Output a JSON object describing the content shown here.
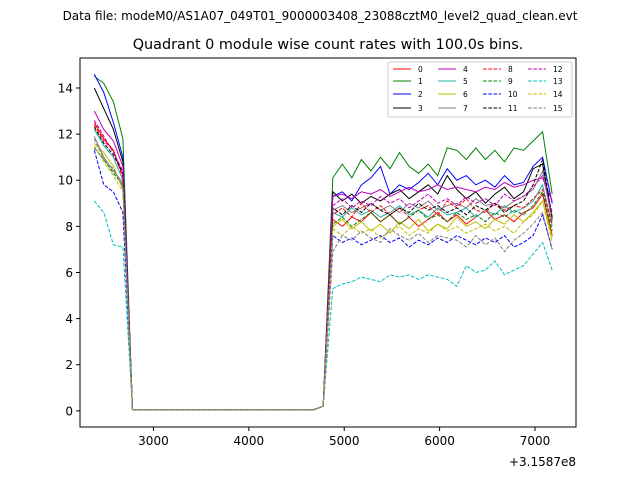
{
  "chart_data": {
    "type": "line",
    "suptitle": "Data file: modeM0/AS1A07_049T01_9000003408_23088cztM0_level2_quad_clean.evt",
    "title": "Quadrant 0 module wise count rates with 100.0s bins.",
    "xlabel": "",
    "ylabel": "",
    "x_offset_label": "+3.1587e8",
    "xlim": [
      2230,
      7430
    ],
    "ylim": [
      -0.7,
      15.3
    ],
    "x_ticks": [
      3000,
      4000,
      5000,
      6000,
      7000
    ],
    "y_ticks": [
      0,
      2,
      4,
      6,
      8,
      10,
      12,
      14
    ],
    "x_tick_labels": [
      "3000",
      "4000",
      "5000",
      "6000",
      "7000"
    ],
    "y_tick_labels": [
      "0",
      "2",
      "4",
      "6",
      "8",
      "10",
      "12",
      "14"
    ],
    "grid": false,
    "legend_position": "top-right",
    "x": [
      2380,
      2480,
      2580,
      2680,
      2780,
      2880,
      2980,
      3080,
      3180,
      3280,
      3380,
      3480,
      3580,
      3680,
      3780,
      3880,
      3980,
      4080,
      4180,
      4280,
      4380,
      4480,
      4580,
      4680,
      4780,
      4880,
      4980,
      5080,
      5180,
      5280,
      5380,
      5480,
      5580,
      5680,
      5780,
      5880,
      5980,
      6080,
      6180,
      6280,
      6380,
      6480,
      6580,
      6680,
      6780,
      6880,
      6980,
      7080,
      7180
    ],
    "series": [
      {
        "name": "0",
        "color": "#ff0000",
        "dash": false,
        "values": [
          12.5,
          11.8,
          11.3,
          10.2,
          0.05,
          0.05,
          0.05,
          0.05,
          0.05,
          0.05,
          0.05,
          0.05,
          0.05,
          0.05,
          0.05,
          0.05,
          0.05,
          0.05,
          0.05,
          0.05,
          0.05,
          0.05,
          0.05,
          0.05,
          0.2,
          8.3,
          8.0,
          8.4,
          8.2,
          8.6,
          8.2,
          8.5,
          8.1,
          8.4,
          8.0,
          8.3,
          8.6,
          8.2,
          8.5,
          8.1,
          8.4,
          8.7,
          8.3,
          8.5,
          8.2,
          8.6,
          8.8,
          9.4,
          7.6
        ]
      },
      {
        "name": "1",
        "color": "#008000",
        "dash": false,
        "values": [
          14.5,
          14.2,
          13.4,
          11.8,
          0.05,
          0.05,
          0.05,
          0.05,
          0.05,
          0.05,
          0.05,
          0.05,
          0.05,
          0.05,
          0.05,
          0.05,
          0.05,
          0.05,
          0.05,
          0.05,
          0.05,
          0.05,
          0.05,
          0.05,
          0.2,
          10.1,
          10.7,
          10.1,
          10.9,
          10.4,
          11.0,
          10.5,
          11.2,
          10.6,
          10.3,
          10.7,
          10.2,
          11.4,
          11.3,
          10.9,
          11.4,
          10.9,
          11.3,
          10.8,
          11.4,
          11.3,
          11.7,
          12.1,
          9.4
        ]
      },
      {
        "name": "2",
        "color": "#0000ff",
        "dash": false,
        "values": [
          14.6,
          13.8,
          12.5,
          11.0,
          0.05,
          0.05,
          0.05,
          0.05,
          0.05,
          0.05,
          0.05,
          0.05,
          0.05,
          0.05,
          0.05,
          0.05,
          0.05,
          0.05,
          0.05,
          0.05,
          0.05,
          0.05,
          0.05,
          0.05,
          0.2,
          9.3,
          9.5,
          9.1,
          9.8,
          10.1,
          10.6,
          9.4,
          9.8,
          9.6,
          9.9,
          10.3,
          9.8,
          10.5,
          10.0,
          10.2,
          9.8,
          10.0,
          9.7,
          10.2,
          9.8,
          9.9,
          10.6,
          11.0,
          9.0
        ]
      },
      {
        "name": "3",
        "color": "#000000",
        "dash": false,
        "values": [
          14.0,
          13.1,
          12.2,
          10.8,
          0.05,
          0.05,
          0.05,
          0.05,
          0.05,
          0.05,
          0.05,
          0.05,
          0.05,
          0.05,
          0.05,
          0.05,
          0.05,
          0.05,
          0.05,
          0.05,
          0.05,
          0.05,
          0.05,
          0.05,
          0.2,
          9.5,
          9.1,
          9.4,
          9.0,
          9.3,
          9.1,
          9.4,
          9.6,
          9.2,
          9.5,
          9.8,
          9.4,
          10.2,
          9.6,
          9.2,
          9.5,
          9.0,
          9.4,
          9.7,
          9.2,
          9.5,
          10.5,
          10.7,
          8.3
        ]
      },
      {
        "name": "4",
        "color": "#bf00bf",
        "dash": false,
        "values": [
          13.0,
          12.2,
          11.7,
          10.6,
          0.05,
          0.05,
          0.05,
          0.05,
          0.05,
          0.05,
          0.05,
          0.05,
          0.05,
          0.05,
          0.05,
          0.05,
          0.05,
          0.05,
          0.05,
          0.05,
          0.05,
          0.05,
          0.05,
          0.05,
          0.2,
          9.3,
          9.4,
          9.2,
          9.5,
          9.4,
          9.6,
          9.3,
          9.5,
          9.7,
          9.5,
          9.6,
          9.8,
          9.6,
          9.7,
          9.6,
          9.5,
          9.7,
          9.6,
          9.9,
          9.7,
          9.8,
          10.0,
          10.1,
          9.1
        ]
      },
      {
        "name": "5",
        "color": "#20b2aa",
        "dash": false,
        "values": [
          12.2,
          11.5,
          11.0,
          10.0,
          0.05,
          0.05,
          0.05,
          0.05,
          0.05,
          0.05,
          0.05,
          0.05,
          0.05,
          0.05,
          0.05,
          0.05,
          0.05,
          0.05,
          0.05,
          0.05,
          0.05,
          0.05,
          0.05,
          0.05,
          0.2,
          8.6,
          8.4,
          8.8,
          8.5,
          8.7,
          8.4,
          8.6,
          8.9,
          8.5,
          8.7,
          8.4,
          8.8,
          8.5,
          8.6,
          8.8,
          8.4,
          8.7,
          8.5,
          8.9,
          8.6,
          8.8,
          9.1,
          9.8,
          8.0
        ]
      },
      {
        "name": "6",
        "color": "#bfbf00",
        "dash": false,
        "values": [
          11.6,
          11.2,
          10.6,
          9.6,
          0.05,
          0.05,
          0.05,
          0.05,
          0.05,
          0.05,
          0.05,
          0.05,
          0.05,
          0.05,
          0.05,
          0.05,
          0.05,
          0.05,
          0.05,
          0.05,
          0.05,
          0.05,
          0.05,
          0.05,
          0.2,
          8.0,
          8.3,
          7.9,
          8.2,
          7.8,
          8.1,
          7.7,
          8.2,
          7.9,
          8.3,
          7.8,
          8.1,
          7.9,
          8.4,
          8.0,
          8.2,
          7.9,
          8.3,
          8.1,
          8.5,
          8.2,
          8.6,
          9.1,
          7.5
        ]
      },
      {
        "name": "7",
        "color": "#808080",
        "dash": false,
        "values": [
          11.9,
          11.0,
          10.4,
          9.9,
          0.05,
          0.05,
          0.05,
          0.05,
          0.05,
          0.05,
          0.05,
          0.05,
          0.05,
          0.05,
          0.05,
          0.05,
          0.05,
          0.05,
          0.05,
          0.05,
          0.05,
          0.05,
          0.05,
          0.05,
          0.2,
          8.7,
          8.9,
          8.6,
          8.8,
          9.0,
          8.7,
          8.9,
          8.6,
          9.0,
          8.8,
          9.1,
          8.7,
          8.9,
          9.0,
          8.8,
          9.2,
          8.9,
          9.0,
          8.8,
          9.1,
          9.3,
          9.6,
          10.4,
          8.2
        ]
      },
      {
        "name": "8",
        "color": "#ff0000",
        "dash": true,
        "values": [
          12.4,
          11.7,
          11.3,
          10.1,
          0.05,
          0.05,
          0.05,
          0.05,
          0.05,
          0.05,
          0.05,
          0.05,
          0.05,
          0.05,
          0.05,
          0.05,
          0.05,
          0.05,
          0.05,
          0.05,
          0.05,
          0.05,
          0.05,
          0.05,
          0.2,
          8.5,
          8.8,
          8.4,
          9.0,
          8.6,
          8.9,
          8.5,
          8.8,
          8.4,
          8.7,
          8.9,
          8.5,
          9.1,
          8.8,
          9.2,
          8.7,
          8.6,
          9.0,
          8.7,
          8.9,
          8.8,
          9.2,
          9.6,
          8.1
        ]
      },
      {
        "name": "9",
        "color": "#008000",
        "dash": true,
        "values": [
          11.4,
          10.9,
          10.3,
          9.8,
          0.05,
          0.05,
          0.05,
          0.05,
          0.05,
          0.05,
          0.05,
          0.05,
          0.05,
          0.05,
          0.05,
          0.05,
          0.05,
          0.05,
          0.05,
          0.05,
          0.05,
          0.05,
          0.05,
          0.05,
          0.2,
          8.1,
          8.4,
          8.0,
          8.3,
          8.6,
          8.2,
          8.5,
          8.1,
          8.4,
          8.7,
          8.3,
          8.5,
          8.2,
          8.6,
          8.3,
          8.5,
          8.2,
          8.6,
          8.4,
          8.7,
          8.5,
          8.9,
          9.5,
          7.8
        ]
      },
      {
        "name": "10",
        "color": "#0000ff",
        "dash": true,
        "values": [
          11.3,
          9.8,
          9.5,
          8.6,
          0.05,
          0.05,
          0.05,
          0.05,
          0.05,
          0.05,
          0.05,
          0.05,
          0.05,
          0.05,
          0.05,
          0.05,
          0.05,
          0.05,
          0.05,
          0.05,
          0.05,
          0.05,
          0.05,
          0.05,
          0.2,
          7.6,
          7.3,
          7.5,
          7.2,
          7.4,
          7.6,
          7.3,
          7.5,
          7.1,
          7.4,
          7.2,
          7.5,
          7.3,
          7.6,
          7.4,
          7.2,
          7.5,
          7.3,
          7.6,
          7.1,
          7.3,
          7.6,
          8.5,
          7.0
        ]
      },
      {
        "name": "11",
        "color": "#000000",
        "dash": true,
        "values": [
          12.3,
          11.6,
          11.1,
          10.3,
          0.05,
          0.05,
          0.05,
          0.05,
          0.05,
          0.05,
          0.05,
          0.05,
          0.05,
          0.05,
          0.05,
          0.05,
          0.05,
          0.05,
          0.05,
          0.05,
          0.05,
          0.05,
          0.05,
          0.05,
          0.2,
          8.8,
          8.5,
          8.9,
          8.6,
          9.0,
          8.7,
          8.5,
          8.8,
          8.6,
          9.0,
          8.7,
          8.9,
          8.6,
          8.8,
          8.5,
          8.9,
          8.7,
          9.0,
          8.6,
          8.9,
          9.1,
          9.8,
          10.9,
          8.4
        ]
      },
      {
        "name": "12",
        "color": "#bf00bf",
        "dash": true,
        "values": [
          12.6,
          11.9,
          11.2,
          10.4,
          0.05,
          0.05,
          0.05,
          0.05,
          0.05,
          0.05,
          0.05,
          0.05,
          0.05,
          0.05,
          0.05,
          0.05,
          0.05,
          0.05,
          0.05,
          0.05,
          0.05,
          0.05,
          0.05,
          0.05,
          0.2,
          8.9,
          9.2,
          8.8,
          9.1,
          8.9,
          9.3,
          9.0,
          9.2,
          8.8,
          9.1,
          9.4,
          9.0,
          9.2,
          8.9,
          9.3,
          9.0,
          9.2,
          8.9,
          9.4,
          9.1,
          9.3,
          9.7,
          10.2,
          8.6
        ]
      },
      {
        "name": "13",
        "color": "#00bfbf",
        "dash": true,
        "values": [
          9.1,
          8.6,
          7.2,
          7.1,
          0.05,
          0.05,
          0.05,
          0.05,
          0.05,
          0.05,
          0.05,
          0.05,
          0.05,
          0.05,
          0.05,
          0.05,
          0.05,
          0.05,
          0.05,
          0.05,
          0.05,
          0.05,
          0.05,
          0.05,
          0.2,
          5.3,
          5.5,
          5.6,
          5.8,
          5.7,
          5.6,
          5.9,
          5.8,
          5.9,
          5.7,
          5.9,
          5.8,
          5.7,
          5.4,
          6.3,
          6.0,
          6.1,
          6.5,
          5.9,
          6.1,
          6.3,
          6.8,
          7.3,
          6.1
        ]
      },
      {
        "name": "14",
        "color": "#bfbf00",
        "dash": true,
        "values": [
          11.5,
          10.8,
          10.2,
          9.5,
          0.05,
          0.05,
          0.05,
          0.05,
          0.05,
          0.05,
          0.05,
          0.05,
          0.05,
          0.05,
          0.05,
          0.05,
          0.05,
          0.05,
          0.05,
          0.05,
          0.05,
          0.05,
          0.05,
          0.05,
          0.2,
          7.9,
          7.6,
          8.0,
          7.7,
          7.9,
          7.5,
          7.8,
          8.0,
          7.6,
          7.9,
          7.7,
          8.1,
          7.8,
          8.0,
          7.7,
          7.9,
          8.1,
          7.8,
          8.0,
          7.7,
          8.2,
          8.5,
          9.1,
          7.3
        ]
      },
      {
        "name": "15",
        "color": "#808080",
        "dash": true,
        "values": [
          11.8,
          10.9,
          10.5,
          9.7,
          0.05,
          0.05,
          0.05,
          0.05,
          0.05,
          0.05,
          0.05,
          0.05,
          0.05,
          0.05,
          0.05,
          0.05,
          0.05,
          0.05,
          0.05,
          0.05,
          0.05,
          0.05,
          0.05,
          0.05,
          0.2,
          6.9,
          7.6,
          7.4,
          7.8,
          7.5,
          7.3,
          7.9,
          7.6,
          7.4,
          7.7,
          7.3,
          7.6,
          7.5,
          7.4,
          7.1,
          7.6,
          7.2,
          7.5,
          6.9,
          7.4,
          7.7,
          8.1,
          8.6,
          7.0
        ]
      }
    ]
  }
}
